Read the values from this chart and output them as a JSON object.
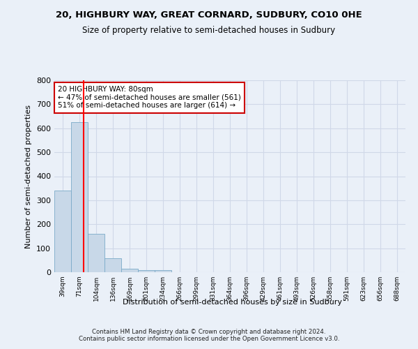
{
  "title1": "20, HIGHBURY WAY, GREAT CORNARD, SUDBURY, CO10 0HE",
  "title2": "Size of property relative to semi-detached houses in Sudbury",
  "xlabel": "Distribution of semi-detached houses by size in Sudbury",
  "ylabel": "Number of semi-detached properties",
  "footnote": "Contains HM Land Registry data © Crown copyright and database right 2024.\nContains public sector information licensed under the Open Government Licence v3.0.",
  "categories": [
    "39sqm",
    "71sqm",
    "104sqm",
    "136sqm",
    "169sqm",
    "201sqm",
    "234sqm",
    "266sqm",
    "299sqm",
    "331sqm",
    "364sqm",
    "396sqm",
    "429sqm",
    "461sqm",
    "493sqm",
    "526sqm",
    "558sqm",
    "591sqm",
    "623sqm",
    "656sqm",
    "688sqm"
  ],
  "values": [
    340,
    625,
    160,
    57,
    15,
    10,
    8,
    0,
    0,
    0,
    0,
    0,
    0,
    0,
    0,
    0,
    0,
    0,
    0,
    0,
    0
  ],
  "bar_color": "#c8d8e8",
  "bar_edge_color": "#7aaac8",
  "grid_color": "#d0d8e8",
  "background_color": "#eaf0f8",
  "red_line_x": 1.27,
  "annotation_text": "20 HIGHBURY WAY: 80sqm\n← 47% of semi-detached houses are smaller (561)\n51% of semi-detached houses are larger (614) →",
  "annotation_box_color": "#ffffff",
  "annotation_box_edgecolor": "#cc0000",
  "ylim": [
    0,
    800
  ],
  "yticks": [
    0,
    100,
    200,
    300,
    400,
    500,
    600,
    700,
    800
  ]
}
